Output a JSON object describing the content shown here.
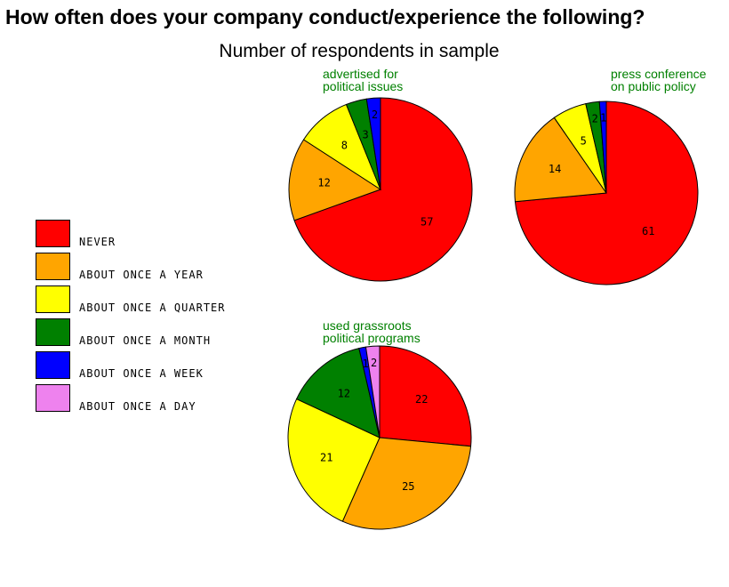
{
  "title": "How often does your company conduct/experience the following?",
  "subtitle": "Number of respondents in sample",
  "legend": [
    {
      "label": "NEVER",
      "color": "#ff0000"
    },
    {
      "label": "ABOUT ONCE A YEAR",
      "color": "#ffa500"
    },
    {
      "label": "ABOUT ONCE A QUARTER",
      "color": "#ffff00"
    },
    {
      "label": "ABOUT ONCE A MONTH",
      "color": "#008000"
    },
    {
      "label": "ABOUT ONCE A WEEK",
      "color": "#0000ff"
    },
    {
      "label": "ABOUT ONCE A DAY",
      "color": "#ee82ee"
    }
  ],
  "chart_data": [
    {
      "type": "pie",
      "title_lines": [
        "advertised for",
        "political issues"
      ],
      "categories": [
        "NEVER",
        "ABOUT ONCE A YEAR",
        "ABOUT ONCE A QUARTER",
        "ABOUT ONCE A MONTH",
        "ABOUT ONCE A WEEK",
        "ABOUT ONCE A DAY"
      ],
      "values": [
        57,
        12,
        8,
        3,
        2,
        0
      ]
    },
    {
      "type": "pie",
      "title_lines": [
        "press conference",
        "on public policy"
      ],
      "categories": [
        "NEVER",
        "ABOUT ONCE A YEAR",
        "ABOUT ONCE A QUARTER",
        "ABOUT ONCE A MONTH",
        "ABOUT ONCE A WEEK",
        "ABOUT ONCE A DAY"
      ],
      "values": [
        61,
        14,
        5,
        2,
        1,
        0
      ]
    },
    {
      "type": "pie",
      "title_lines": [
        "used grassroots",
        "political programs"
      ],
      "categories": [
        "NEVER",
        "ABOUT ONCE A YEAR",
        "ABOUT ONCE A QUARTER",
        "ABOUT ONCE A MONTH",
        "ABOUT ONCE A WEEK",
        "ABOUT ONCE A DAY"
      ],
      "values": [
        22,
        25,
        21,
        12,
        1,
        2
      ]
    }
  ]
}
